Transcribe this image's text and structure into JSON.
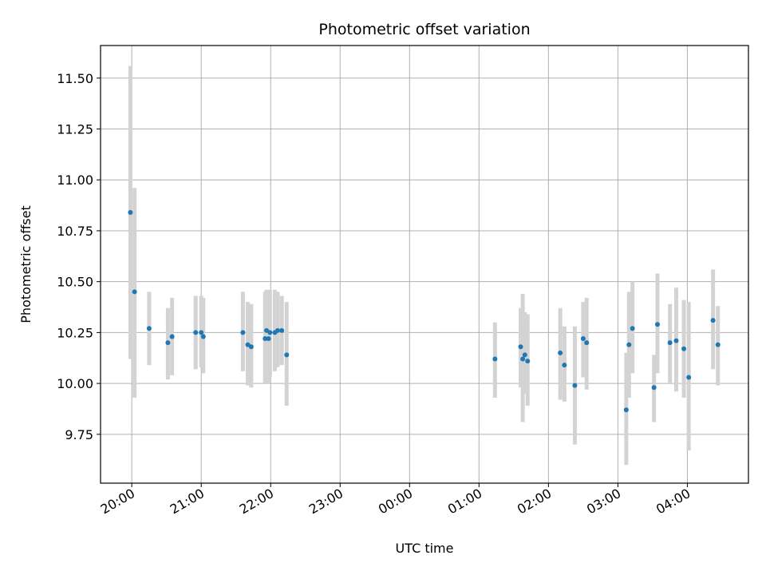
{
  "chart_data": {
    "type": "scatter",
    "title": "Photometric offset variation",
    "xlabel": "UTC time",
    "ylabel": "Photometric offset",
    "x_unit": "hours since 00:00 UTC (day before for negative values)",
    "xlim": [
      -4.45,
      4.88
    ],
    "ylim": [
      9.51,
      11.66
    ],
    "grid": true,
    "x_ticks": [
      {
        "value": -4,
        "label": "20:00"
      },
      {
        "value": -3,
        "label": "21:00"
      },
      {
        "value": -2,
        "label": "22:00"
      },
      {
        "value": -1,
        "label": "23:00"
      },
      {
        "value": 0,
        "label": "00:00"
      },
      {
        "value": 1,
        "label": "01:00"
      },
      {
        "value": 2,
        "label": "02:00"
      },
      {
        "value": 3,
        "label": "03:00"
      },
      {
        "value": 4,
        "label": "04:00"
      }
    ],
    "y_ticks": [
      {
        "value": 9.75,
        "label": "9.75"
      },
      {
        "value": 10.0,
        "label": "10.00"
      },
      {
        "value": 10.25,
        "label": "10.25"
      },
      {
        "value": 10.5,
        "label": "10.50"
      },
      {
        "value": 10.75,
        "label": "10.75"
      },
      {
        "value": 11.0,
        "label": "11.00"
      },
      {
        "value": 11.25,
        "label": "11.25"
      },
      {
        "value": 11.5,
        "label": "11.50"
      }
    ],
    "series": [
      {
        "marker_color": "#1f77b4",
        "errorbar_color": "#d3d3d3",
        "points": [
          {
            "x": -4.02,
            "y": 10.84,
            "lo": 10.12,
            "hi": 11.56
          },
          {
            "x": -3.96,
            "y": 10.45,
            "lo": 9.93,
            "hi": 10.96
          },
          {
            "x": -3.75,
            "y": 10.27,
            "lo": 10.09,
            "hi": 10.45
          },
          {
            "x": -3.48,
            "y": 10.2,
            "lo": 10.02,
            "hi": 10.37
          },
          {
            "x": -3.42,
            "y": 10.23,
            "lo": 10.04,
            "hi": 10.42
          },
          {
            "x": -3.08,
            "y": 10.25,
            "lo": 10.07,
            "hi": 10.43
          },
          {
            "x": -3.0,
            "y": 10.25,
            "lo": 10.08,
            "hi": 10.43
          },
          {
            "x": -2.97,
            "y": 10.23,
            "lo": 10.05,
            "hi": 10.42
          },
          {
            "x": -2.4,
            "y": 10.25,
            "lo": 10.06,
            "hi": 10.45
          },
          {
            "x": -2.33,
            "y": 10.19,
            "lo": 9.99,
            "hi": 10.4
          },
          {
            "x": -2.28,
            "y": 10.18,
            "lo": 9.98,
            "hi": 10.39
          },
          {
            "x": -2.08,
            "y": 10.22,
            "lo": 10.0,
            "hi": 10.45
          },
          {
            "x": -2.06,
            "y": 10.26,
            "lo": 10.05,
            "hi": 10.46
          },
          {
            "x": -2.03,
            "y": 10.22,
            "lo": 10.0,
            "hi": 10.46
          },
          {
            "x": -2.01,
            "y": 10.25,
            "lo": 10.03,
            "hi": 10.46
          },
          {
            "x": -1.94,
            "y": 10.25,
            "lo": 10.06,
            "hi": 10.46
          },
          {
            "x": -1.9,
            "y": 10.26,
            "lo": 10.08,
            "hi": 10.45
          },
          {
            "x": -1.84,
            "y": 10.26,
            "lo": 10.09,
            "hi": 10.43
          },
          {
            "x": -1.77,
            "y": 10.14,
            "lo": 9.89,
            "hi": 10.4
          },
          {
            "x": 1.23,
            "y": 10.12,
            "lo": 9.93,
            "hi": 10.3
          },
          {
            "x": 1.6,
            "y": 10.18,
            "lo": 9.98,
            "hi": 10.37
          },
          {
            "x": 1.63,
            "y": 10.12,
            "lo": 9.81,
            "hi": 10.44
          },
          {
            "x": 1.66,
            "y": 10.14,
            "lo": 9.95,
            "hi": 10.35
          },
          {
            "x": 1.7,
            "y": 10.11,
            "lo": 9.89,
            "hi": 10.34
          },
          {
            "x": 2.17,
            "y": 10.15,
            "lo": 9.92,
            "hi": 10.37
          },
          {
            "x": 2.23,
            "y": 10.09,
            "lo": 9.91,
            "hi": 10.28
          },
          {
            "x": 2.38,
            "y": 9.99,
            "lo": 9.7,
            "hi": 10.28
          },
          {
            "x": 2.5,
            "y": 10.22,
            "lo": 10.03,
            "hi": 10.4
          },
          {
            "x": 2.55,
            "y": 10.2,
            "lo": 9.97,
            "hi": 10.42
          },
          {
            "x": 3.12,
            "y": 9.87,
            "lo": 9.6,
            "hi": 10.15
          },
          {
            "x": 3.16,
            "y": 10.19,
            "lo": 9.93,
            "hi": 10.45
          },
          {
            "x": 3.21,
            "y": 10.27,
            "lo": 10.05,
            "hi": 10.5
          },
          {
            "x": 3.52,
            "y": 9.98,
            "lo": 9.81,
            "hi": 10.14
          },
          {
            "x": 3.57,
            "y": 10.29,
            "lo": 10.05,
            "hi": 10.54
          },
          {
            "x": 3.75,
            "y": 10.2,
            "lo": 10.0,
            "hi": 10.39
          },
          {
            "x": 3.84,
            "y": 10.21,
            "lo": 9.96,
            "hi": 10.47
          },
          {
            "x": 3.95,
            "y": 10.17,
            "lo": 9.93,
            "hi": 10.41
          },
          {
            "x": 4.02,
            "y": 10.03,
            "lo": 9.67,
            "hi": 10.4
          },
          {
            "x": 4.37,
            "y": 10.31,
            "lo": 10.07,
            "hi": 10.56
          },
          {
            "x": 4.44,
            "y": 10.19,
            "lo": 9.99,
            "hi": 10.38
          }
        ]
      }
    ]
  }
}
